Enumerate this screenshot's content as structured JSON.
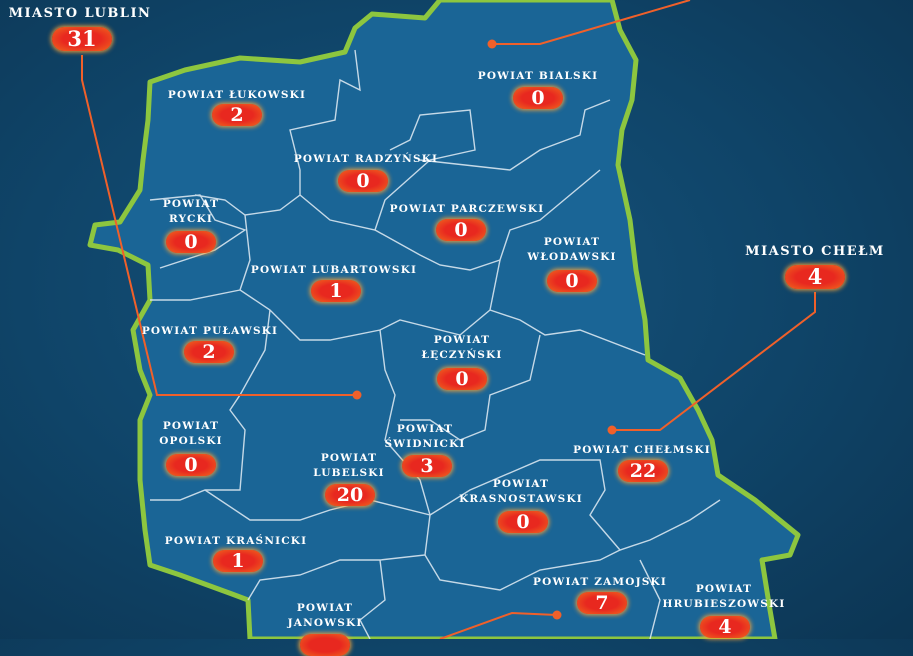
{
  "colors": {
    "background": "#0f4468",
    "region_fill": "#1a6596",
    "border": "#8dc63f",
    "district_line": "#d8e6f0",
    "pill": "#e8281f",
    "connector": "#f0602a"
  },
  "cities": [
    {
      "name": "MIASTO LUBLIN",
      "value": "31"
    },
    {
      "name": "MIASTO CHEŁM",
      "value": "4"
    }
  ],
  "districts": [
    {
      "name": "POWIAT ŁUKOWSKI",
      "value": "2"
    },
    {
      "name": "POWIAT BIALSKI",
      "value": "0"
    },
    {
      "name": "POWIAT RADZYŃSKI",
      "value": "0"
    },
    {
      "name_line1": "POWIAT",
      "name_line2": "RYCKI",
      "value": "0"
    },
    {
      "name": "POWIAT PARCZEWSKI",
      "value": "0"
    },
    {
      "name_line1": "POWIAT",
      "name_line2": "WŁODAWSKI",
      "value": "0"
    },
    {
      "name": "POWIAT LUBARTOWSKI",
      "value": "1"
    },
    {
      "name": "POWIAT PUŁAWSKI",
      "value": "2"
    },
    {
      "name_line1": "POWIAT",
      "name_line2": "ŁĘCZYŃSKI",
      "value": "0"
    },
    {
      "name_line1": "POWIAT",
      "name_line2": "OPOLSKI",
      "value": "0"
    },
    {
      "name_line1": "POWIAT",
      "name_line2": "LUBELSKI",
      "value": "20"
    },
    {
      "name_line1": "POWIAT",
      "name_line2": "ŚWIDNICKI",
      "value": "3"
    },
    {
      "name": "POWIAT CHEŁMSKI",
      "value": "22"
    },
    {
      "name_line1": "POWIAT",
      "name_line2": "KRASNOSTAWSKI",
      "value": "0"
    },
    {
      "name": "POWIAT KRAŚNICKI",
      "value": "1"
    },
    {
      "name": "POWIAT ZAMOJSKI",
      "value": "7"
    },
    {
      "name_line1": "POWIAT",
      "name_line2": "HRUBIESZOWSKI",
      "value": "4"
    },
    {
      "name_line1": "POWIAT",
      "name_line2": "JANOWSKI"
    }
  ]
}
